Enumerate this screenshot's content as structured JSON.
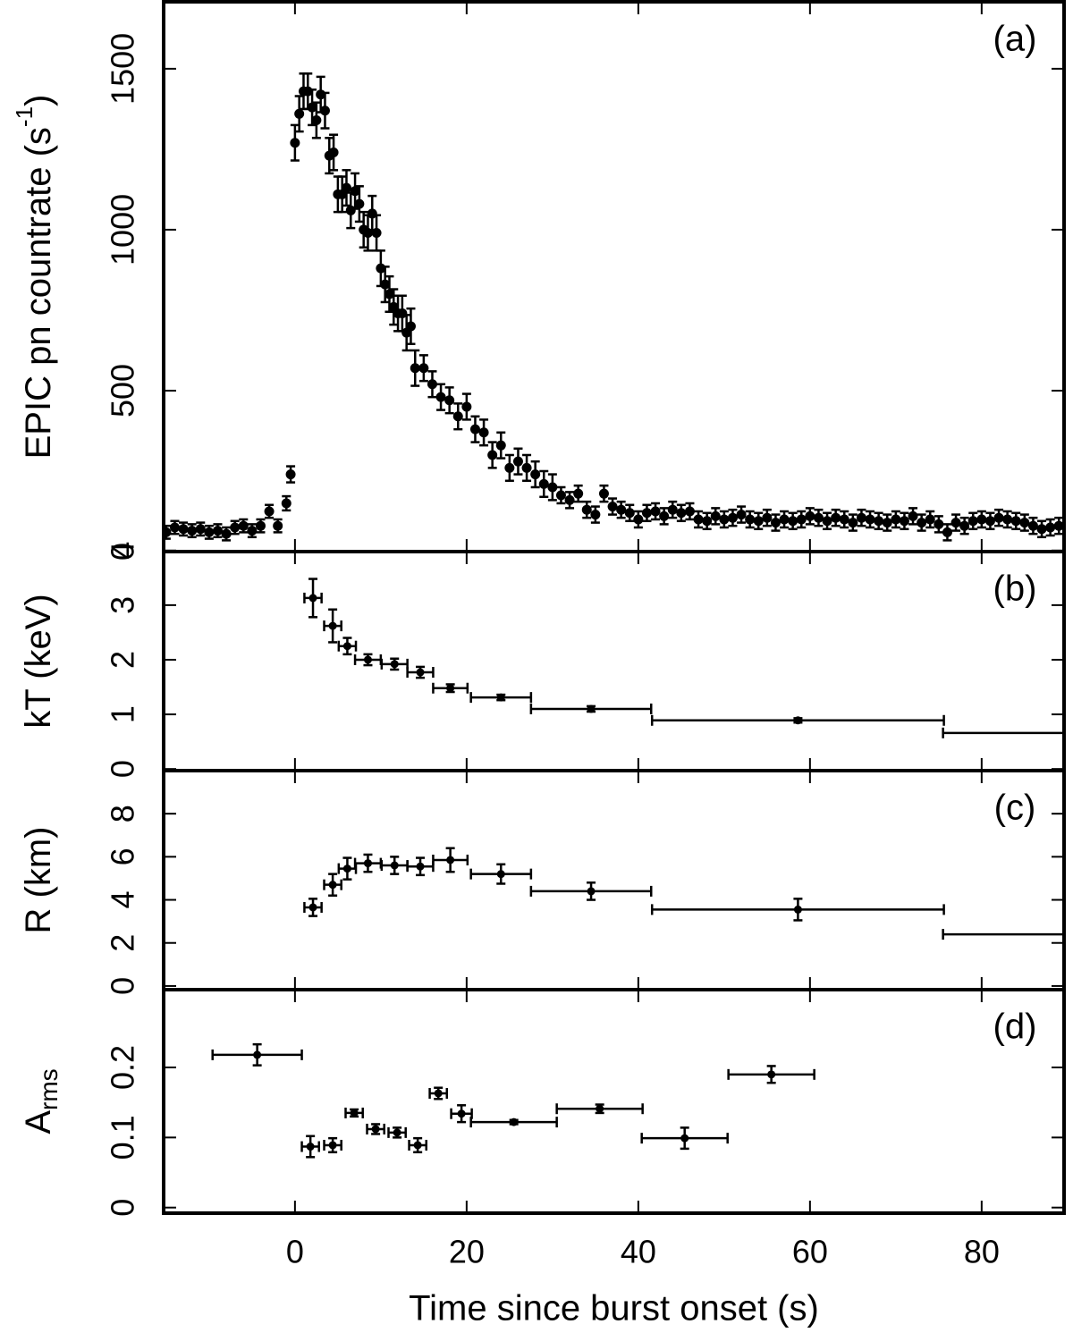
{
  "chart_data": [
    {
      "type": "scatter",
      "panel_label": "(a)",
      "ylabel": "EPIC pn countrate (s",
      "ylabel_sup": "-1",
      "ylabel_end": ")",
      "xlim": [
        -15.3,
        89.6
      ],
      "ylim": [
        0,
        1708
      ],
      "yticks": [
        0,
        500,
        1000,
        1500
      ],
      "color": "#000000",
      "x": [
        -15,
        -14,
        -13,
        -12,
        -11,
        -10,
        -9,
        -8,
        -7,
        -6,
        -5,
        -4,
        -3,
        -2,
        -1,
        -0.5,
        0,
        0.5,
        1,
        1.5,
        2,
        2.5,
        3,
        3.5,
        4,
        4.5,
        5,
        5.5,
        6,
        6.5,
        7,
        7.5,
        8,
        8.5,
        9,
        9.5,
        10,
        10.5,
        11,
        11.5,
        12,
        12.5,
        13,
        13.5,
        14,
        15,
        16,
        17,
        18,
        19,
        20,
        21,
        22,
        23,
        24,
        25,
        26,
        27,
        28,
        29,
        30,
        31,
        32,
        33,
        34,
        35,
        36,
        37,
        38,
        39,
        40,
        41,
        42,
        43,
        44,
        45,
        46,
        47,
        48,
        49,
        50,
        51,
        52,
        53,
        54,
        55,
        56,
        57,
        58,
        59,
        60,
        61,
        62,
        63,
        64,
        65,
        66,
        67,
        68,
        69,
        70,
        71,
        72,
        73,
        74,
        75,
        76,
        77,
        78,
        79,
        80,
        81,
        82,
        83,
        84,
        85,
        86,
        87,
        88,
        89
      ],
      "values": [
        60,
        75,
        70,
        65,
        70,
        60,
        65,
        55,
        75,
        80,
        65,
        80,
        125,
        80,
        150,
        240,
        1270,
        1360,
        1430,
        1430,
        1380,
        1340,
        1420,
        1370,
        1230,
        1240,
        1110,
        1110,
        1130,
        1060,
        1120,
        1080,
        1000,
        990,
        1050,
        990,
        880,
        830,
        800,
        760,
        740,
        740,
        680,
        700,
        570,
        570,
        520,
        480,
        470,
        420,
        450,
        380,
        370,
        300,
        330,
        260,
        280,
        260,
        240,
        210,
        200,
        175,
        160,
        180,
        130,
        115,
        180,
        140,
        130,
        120,
        100,
        120,
        125,
        110,
        130,
        120,
        125,
        100,
        95,
        110,
        100,
        105,
        115,
        100,
        95,
        105,
        90,
        100,
        95,
        100,
        110,
        105,
        95,
        105,
        100,
        90,
        105,
        100,
        95,
        90,
        100,
        95,
        110,
        90,
        100,
        85,
        60,
        90,
        80,
        95,
        100,
        95,
        105,
        100,
        95,
        90,
        80,
        70,
        75,
        80
      ],
      "yerr": [
        20,
        20,
        20,
        20,
        20,
        20,
        20,
        20,
        20,
        20,
        20,
        20,
        20,
        20,
        22,
        25,
        55,
        55,
        55,
        55,
        55,
        55,
        55,
        55,
        55,
        55,
        55,
        55,
        55,
        55,
        55,
        55,
        55,
        55,
        55,
        55,
        55,
        55,
        55,
        55,
        55,
        55,
        55,
        55,
        55,
        40,
        40,
        40,
        40,
        40,
        40,
        40,
        40,
        40,
        40,
        40,
        40,
        40,
        40,
        40,
        40,
        25,
        25,
        25,
        25,
        25,
        25,
        25,
        25,
        25,
        25,
        25,
        25,
        25,
        25,
        25,
        25,
        25,
        25,
        25,
        25,
        25,
        25,
        25,
        25,
        25,
        25,
        25,
        25,
        25,
        25,
        25,
        25,
        25,
        25,
        25,
        25,
        25,
        25,
        25,
        25,
        25,
        25,
        25,
        25,
        25,
        25,
        25,
        25,
        25,
        25,
        25,
        25,
        25,
        25,
        25,
        25,
        25,
        25,
        25
      ]
    },
    {
      "type": "scatter",
      "panel_label": "(b)",
      "ylabel": "kT (keV)",
      "xlim": [
        -15.3,
        89.6
      ],
      "ylim": [
        -0.03,
        3.98
      ],
      "yticks": [
        0,
        1,
        2,
        3,
        4
      ],
      "color": "#000000",
      "x": [
        2.1,
        4.4,
        6.1,
        8.5,
        11.6,
        14.6,
        18.1,
        24.0,
        34.5,
        58.6,
        92.5
      ],
      "xerr": [
        1,
        1,
        1,
        1.5,
        1.5,
        1.5,
        2,
        3.5,
        7,
        17,
        17
      ],
      "values": [
        3.13,
        2.62,
        2.25,
        2.0,
        1.92,
        1.77,
        1.48,
        1.31,
        1.1,
        0.89,
        0.66
      ],
      "yerr": [
        0.35,
        0.3,
        0.15,
        0.1,
        0.1,
        0.1,
        0.07,
        0.05,
        0.05,
        0.04,
        0
      ]
    },
    {
      "type": "scatter",
      "panel_label": "(c)",
      "ylabel": "R (km)",
      "xlim": [
        -15.3,
        89.6
      ],
      "ylim": [
        -0.17,
        10.0
      ],
      "yticks": [
        0,
        2,
        4,
        6,
        8
      ],
      "color": "#000000",
      "x": [
        2.1,
        4.4,
        6.1,
        8.5,
        11.6,
        14.6,
        18.1,
        24.0,
        34.5,
        58.6,
        92.5
      ],
      "xerr": [
        1,
        1,
        1,
        1.5,
        1.5,
        1.5,
        2,
        3.5,
        7,
        17,
        17
      ],
      "values": [
        3.65,
        4.7,
        5.45,
        5.7,
        5.6,
        5.55,
        5.85,
        5.2,
        4.4,
        3.55,
        2.4
      ],
      "yerr": [
        0.4,
        0.5,
        0.5,
        0.4,
        0.4,
        0.4,
        0.55,
        0.45,
        0.4,
        0.5,
        0
      ]
    },
    {
      "type": "scatter",
      "panel_label": "(d)",
      "ylabel": "A",
      "ylabel_sub": "rms",
      "xlabel": "Time since burst onset (s)",
      "xlim": [
        -15.3,
        89.6
      ],
      "xticks": [
        0,
        20,
        40,
        60,
        80
      ],
      "ylim": [
        -0.008,
        0.311
      ],
      "yticks": [
        0,
        0.1,
        0.2
      ],
      "color": "#000000",
      "x": [
        -4.4,
        1.8,
        4.4,
        6.9,
        9.4,
        11.9,
        14.3,
        16.7,
        19.4,
        25.5,
        35.5,
        45.4,
        55.5
      ],
      "xerr": [
        5.2,
        1,
        1,
        1,
        1,
        1,
        1,
        1,
        1.2,
        5,
        5,
        5,
        5
      ],
      "values": [
        0.218,
        0.087,
        0.089,
        0.135,
        0.112,
        0.107,
        0.089,
        0.163,
        0.134,
        0.122,
        0.141,
        0.099,
        0.19
      ],
      "yerr": [
        0.015,
        0.015,
        0.01,
        0.005,
        0.007,
        0.007,
        0.01,
        0.008,
        0.012,
        0.003,
        0.006,
        0.015,
        0.012
      ]
    }
  ]
}
